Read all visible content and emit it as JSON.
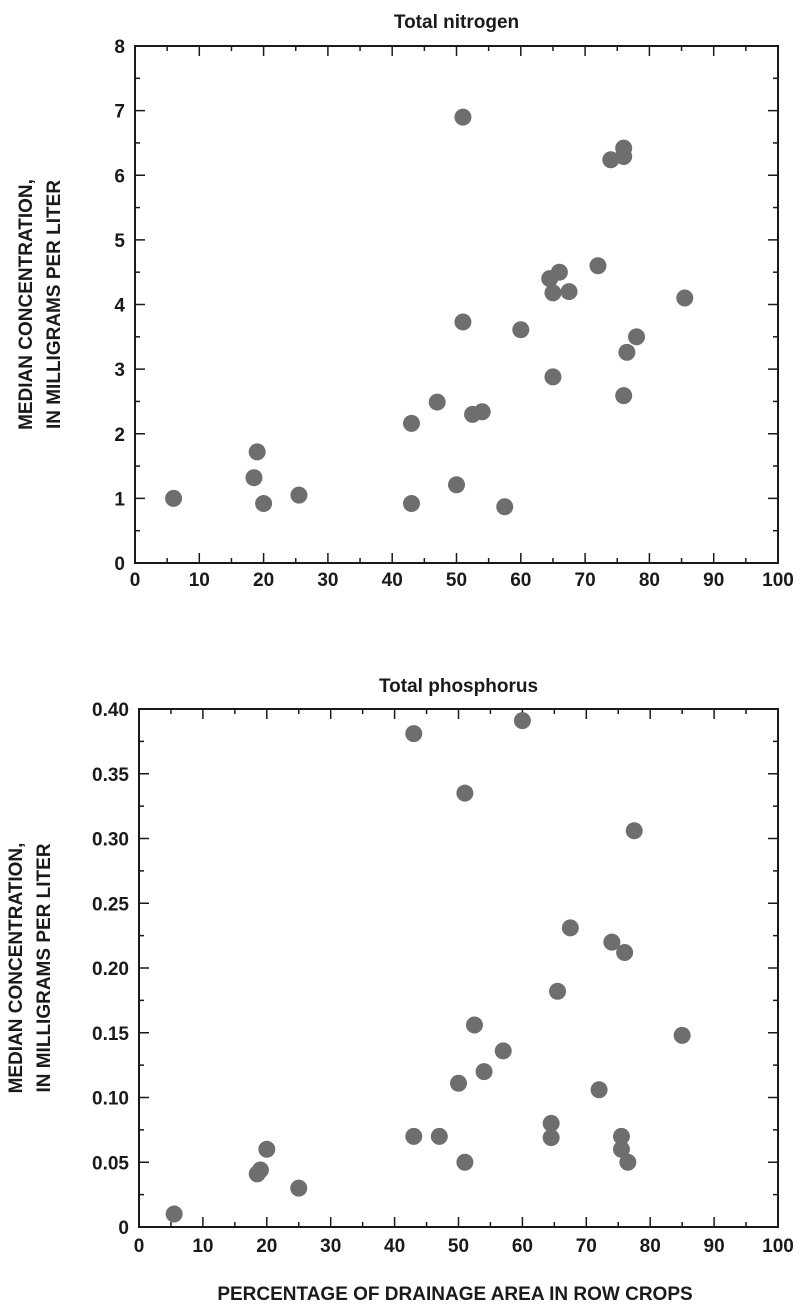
{
  "chart_data": [
    {
      "type": "scatter",
      "title": "Total nitrogen",
      "xlabel": "",
      "ylabel_lines": [
        "MEDIAN CONCENTRATION,",
        "IN MILLIGRAMS PER LITER"
      ],
      "xlim": [
        0,
        100
      ],
      "ylim": [
        0,
        8
      ],
      "x_ticks": [
        0,
        10,
        20,
        30,
        40,
        50,
        60,
        70,
        80,
        90,
        100
      ],
      "y_ticks": [
        0,
        1,
        2,
        3,
        4,
        5,
        6,
        7,
        8
      ],
      "y_tick_labels": [
        "0",
        "1",
        "2",
        "3",
        "4",
        "5",
        "6",
        "7",
        "8"
      ],
      "grid": false,
      "points": [
        {
          "x": 6,
          "y": 1.0
        },
        {
          "x": 18.5,
          "y": 1.32
        },
        {
          "x": 19,
          "y": 1.72
        },
        {
          "x": 20,
          "y": 0.92
        },
        {
          "x": 25.5,
          "y": 1.05
        },
        {
          "x": 43,
          "y": 2.16
        },
        {
          "x": 43,
          "y": 0.92
        },
        {
          "x": 47,
          "y": 2.49
        },
        {
          "x": 50,
          "y": 1.21
        },
        {
          "x": 51,
          "y": 6.9
        },
        {
          "x": 51,
          "y": 3.73
        },
        {
          "x": 52.5,
          "y": 2.3
        },
        {
          "x": 54,
          "y": 2.34
        },
        {
          "x": 57.5,
          "y": 0.87
        },
        {
          "x": 60,
          "y": 3.61
        },
        {
          "x": 64.5,
          "y": 4.4
        },
        {
          "x": 65,
          "y": 4.18
        },
        {
          "x": 65,
          "y": 2.88
        },
        {
          "x": 66,
          "y": 4.5
        },
        {
          "x": 67.5,
          "y": 4.2
        },
        {
          "x": 72,
          "y": 4.6
        },
        {
          "x": 74,
          "y": 6.24
        },
        {
          "x": 76,
          "y": 6.29
        },
        {
          "x": 76,
          "y": 6.42
        },
        {
          "x": 76,
          "y": 2.59
        },
        {
          "x": 76.5,
          "y": 3.26
        },
        {
          "x": 78,
          "y": 3.5
        },
        {
          "x": 85.5,
          "y": 4.1
        }
      ]
    },
    {
      "type": "scatter",
      "title": "Total phosphorus",
      "xlabel": "PERCENTAGE OF DRAINAGE AREA IN ROW CROPS",
      "ylabel_lines": [
        "MEDIAN CONCENTRATION,",
        "IN MILLIGRAMS PER LITER"
      ],
      "xlim": [
        0,
        100
      ],
      "ylim": [
        0,
        0.4
      ],
      "x_ticks": [
        0,
        10,
        20,
        30,
        40,
        50,
        60,
        70,
        80,
        90,
        100
      ],
      "y_ticks": [
        0,
        0.05,
        0.1,
        0.15,
        0.2,
        0.25,
        0.3,
        0.35,
        0.4
      ],
      "y_tick_labels": [
        "0",
        "0.05",
        "0.10",
        "0.15",
        "0.20",
        "0.25",
        "0.30",
        "0.35",
        "0.40"
      ],
      "grid": false,
      "points": [
        {
          "x": 5.5,
          "y": 0.01
        },
        {
          "x": 18.5,
          "y": 0.041
        },
        {
          "x": 19,
          "y": 0.044
        },
        {
          "x": 20,
          "y": 0.06
        },
        {
          "x": 25,
          "y": 0.03
        },
        {
          "x": 43,
          "y": 0.381
        },
        {
          "x": 43,
          "y": 0.07
        },
        {
          "x": 47,
          "y": 0.07
        },
        {
          "x": 50,
          "y": 0.111
        },
        {
          "x": 51,
          "y": 0.335
        },
        {
          "x": 51,
          "y": 0.05
        },
        {
          "x": 52.5,
          "y": 0.156
        },
        {
          "x": 54,
          "y": 0.12
        },
        {
          "x": 57,
          "y": 0.136
        },
        {
          "x": 60,
          "y": 0.391
        },
        {
          "x": 64.5,
          "y": 0.08
        },
        {
          "x": 64.5,
          "y": 0.069
        },
        {
          "x": 65.5,
          "y": 0.182
        },
        {
          "x": 67.5,
          "y": 0.231
        },
        {
          "x": 72,
          "y": 0.106
        },
        {
          "x": 74,
          "y": 0.22
        },
        {
          "x": 75.5,
          "y": 0.06
        },
        {
          "x": 75.5,
          "y": 0.07
        },
        {
          "x": 76,
          "y": 0.212
        },
        {
          "x": 76.5,
          "y": 0.05
        },
        {
          "x": 77.5,
          "y": 0.306
        },
        {
          "x": 85,
          "y": 0.148
        }
      ]
    }
  ]
}
